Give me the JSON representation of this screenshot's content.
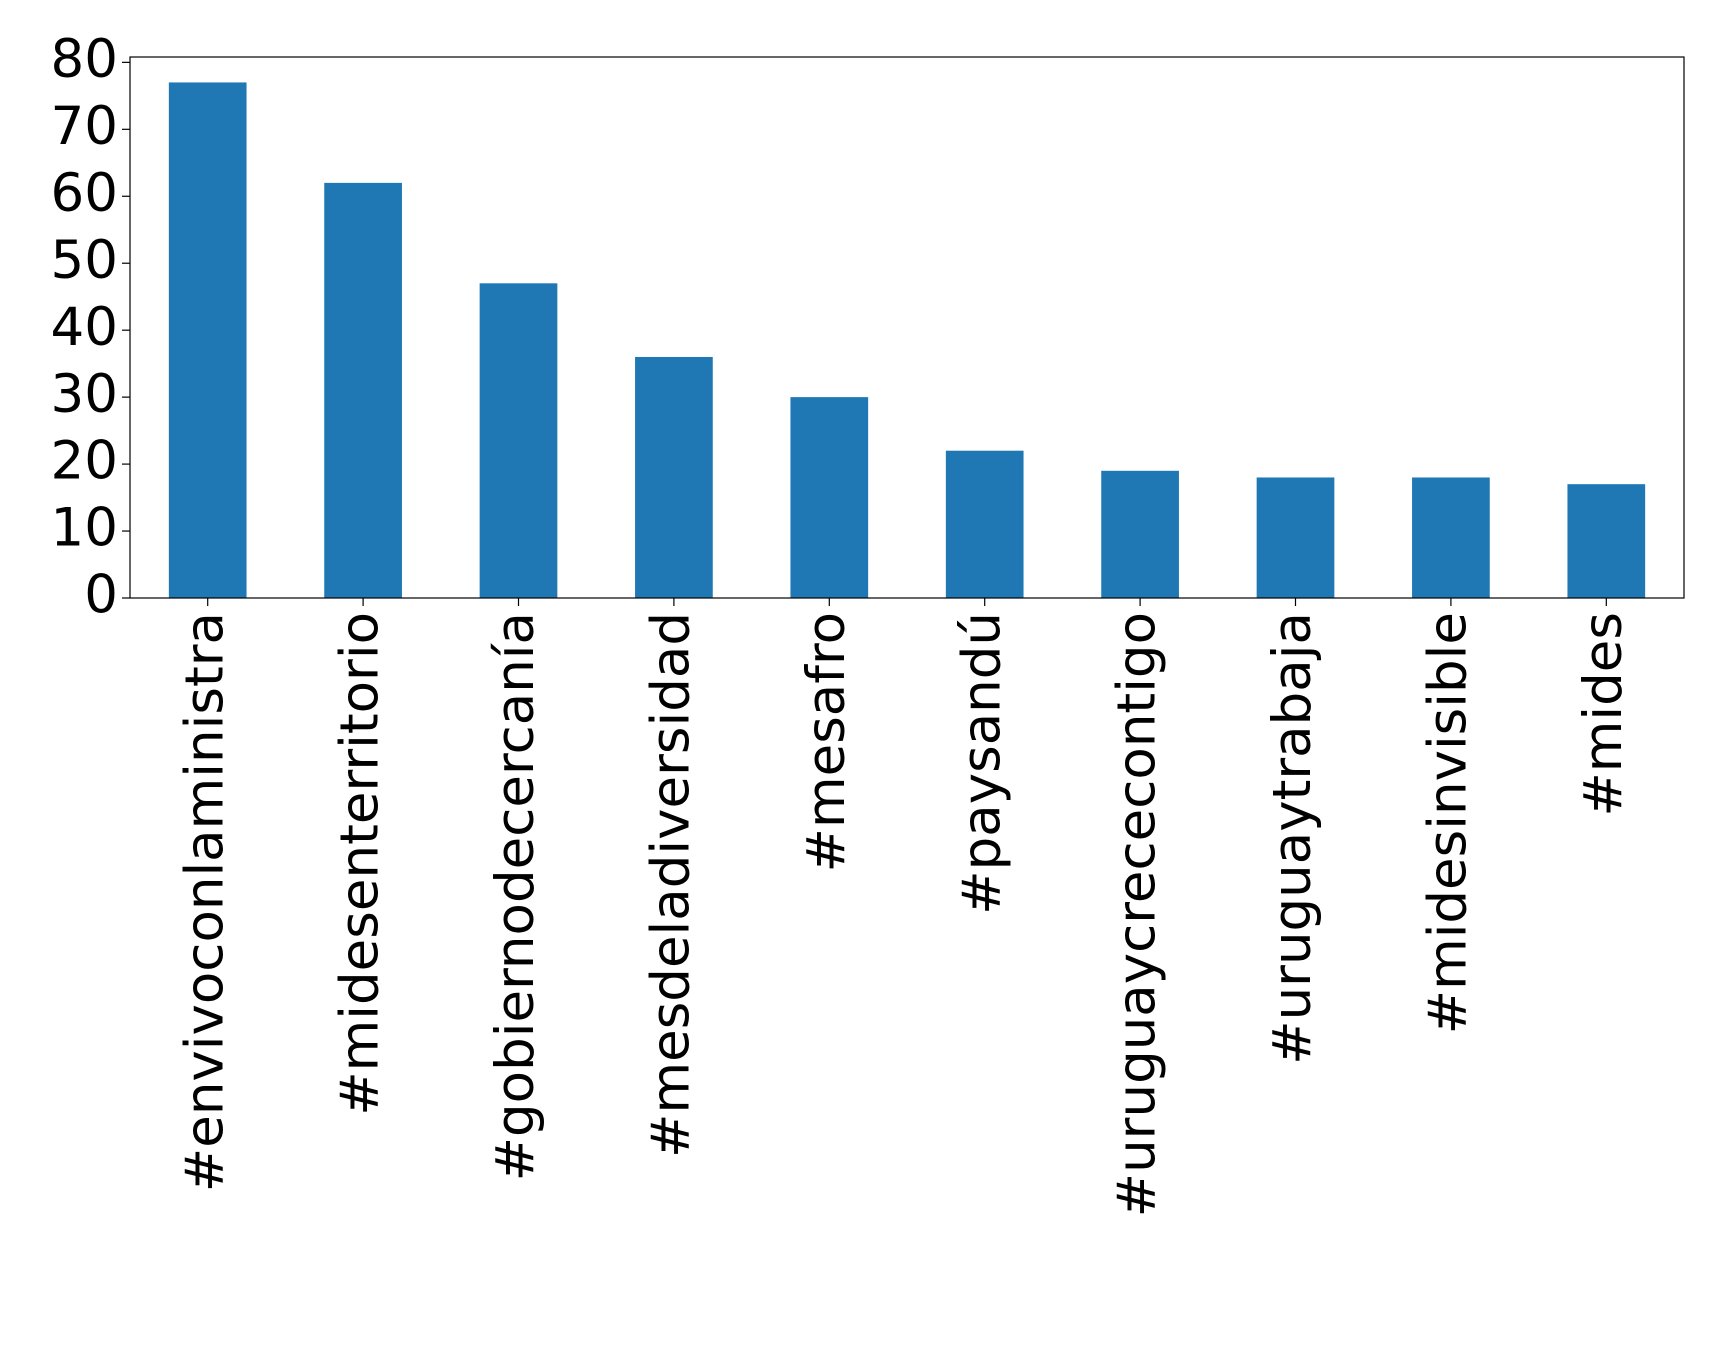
{
  "chart_data": {
    "type": "bar",
    "categories": [
      "#envivoconlaministra",
      "#midesenterritorio",
      "#gobiernodecercanía",
      "#mesdeladiversidad",
      "#mesafro",
      "#paysandú",
      "#uruguaycrececontigo",
      "#uruguaytrabaja",
      "#midesinvisible",
      "#mides"
    ],
    "values": [
      77,
      62,
      47,
      36,
      30,
      22,
      19,
      18,
      18,
      17
    ],
    "color": "#1f77b4",
    "ylim": [
      0,
      80.8
    ],
    "yticks": [
      0,
      10,
      20,
      30,
      40,
      50,
      60,
      70,
      80
    ],
    "grid": false
  }
}
